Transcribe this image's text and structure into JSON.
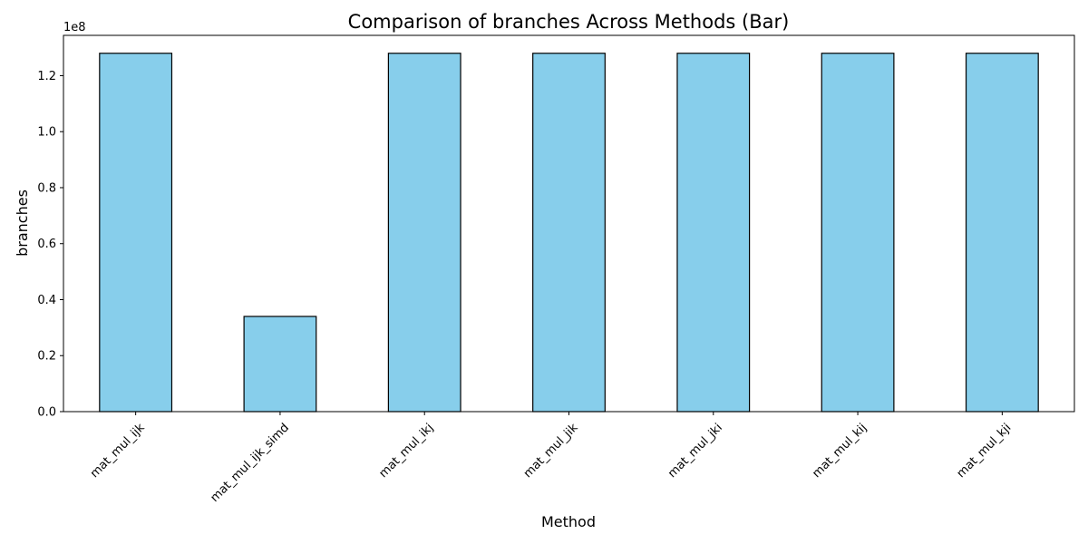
{
  "chart_data": {
    "type": "bar",
    "title": "Comparison of branches Across Methods (Bar)",
    "xlabel": "Method",
    "ylabel": "branches",
    "y_multiplier_label": "1e8",
    "y_scale": 100000000,
    "categories": [
      "mat_mul_ijk",
      "mat_mul_ijk_simd",
      "mat_mul_ikj",
      "mat_mul_jik",
      "mat_mul_jki",
      "mat_mul_kij",
      "mat_mul_kji"
    ],
    "values": [
      128000000,
      34000000,
      128000000,
      128000000,
      128000000,
      128000000,
      128000000
    ],
    "ylim": [
      0,
      134400000
    ],
    "yticks": [
      0,
      20000000,
      40000000,
      60000000,
      80000000,
      100000000,
      120000000
    ],
    "ytick_labels": [
      "0.0",
      "0.2",
      "0.4",
      "0.6",
      "0.8",
      "1.0",
      "1.2"
    ],
    "bar_color": "#87ceeb",
    "bar_edge_color": "#000000",
    "grid": false,
    "legend": "none"
  }
}
